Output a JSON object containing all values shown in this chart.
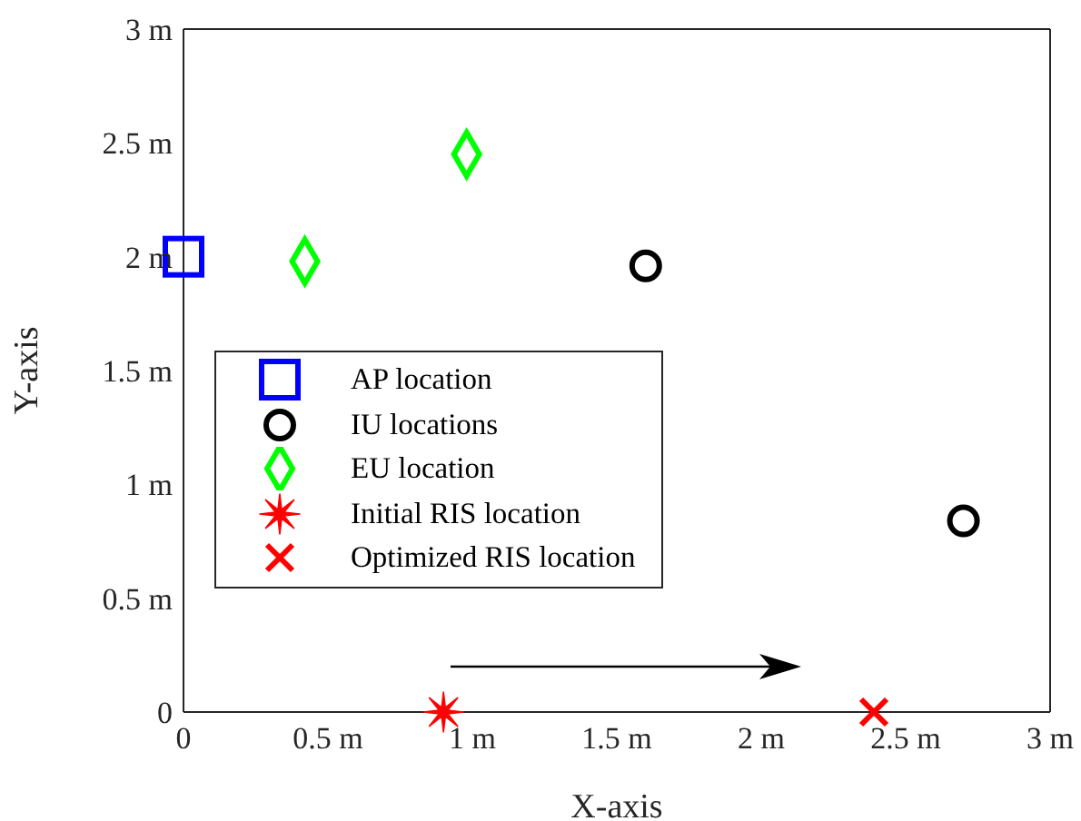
{
  "chart_data": {
    "type": "scatter",
    "xlabel": "X-axis",
    "ylabel": "Y-axis",
    "xlim": [
      0,
      3
    ],
    "ylim": [
      0,
      3
    ],
    "xticks": [
      0,
      {
        "value": 0.5,
        "label": "0.5 m"
      },
      {
        "value": 1,
        "label": "1 m"
      },
      {
        "value": 1.5,
        "label": "1.5 m"
      },
      {
        "value": 2,
        "label": "2 m"
      },
      {
        "value": 2.5,
        "label": "2.5 m"
      },
      {
        "value": 3,
        "label": "3 m"
      }
    ],
    "yticks": [
      0,
      {
        "value": 0.5,
        "label": "0.5 m"
      },
      {
        "value": 1,
        "label": "1 m"
      },
      {
        "value": 1.5,
        "label": "1.5 m"
      },
      {
        "value": 2,
        "label": "2 m"
      },
      {
        "value": 2.5,
        "label": "2.5 m"
      },
      {
        "value": 3,
        "label": "3 m"
      }
    ],
    "grid": false,
    "legend": "left",
    "series": [
      {
        "name": "AP location",
        "color": "#0000ff",
        "marker": "square",
        "x": [
          0
        ],
        "values": [
          2
        ]
      },
      {
        "name": "IU locations",
        "color": "#000000",
        "marker": "circle",
        "x": [
          1.6,
          2.7
        ],
        "values": [
          1.96,
          0.84
        ]
      },
      {
        "name": "EU location",
        "color": "#00ff00",
        "marker": "diamond",
        "x": [
          0.42,
          0.98
        ],
        "values": [
          1.98,
          2.45
        ]
      },
      {
        "name": "Initial RIS location",
        "color": "#ff0000",
        "marker": "star",
        "x": [
          0.9
        ],
        "values": [
          0
        ]
      },
      {
        "name": "Optimized RIS location",
        "color": "#ff0000",
        "marker": "cross",
        "x": [
          2.39
        ],
        "values": [
          0
        ]
      }
    ]
  }
}
